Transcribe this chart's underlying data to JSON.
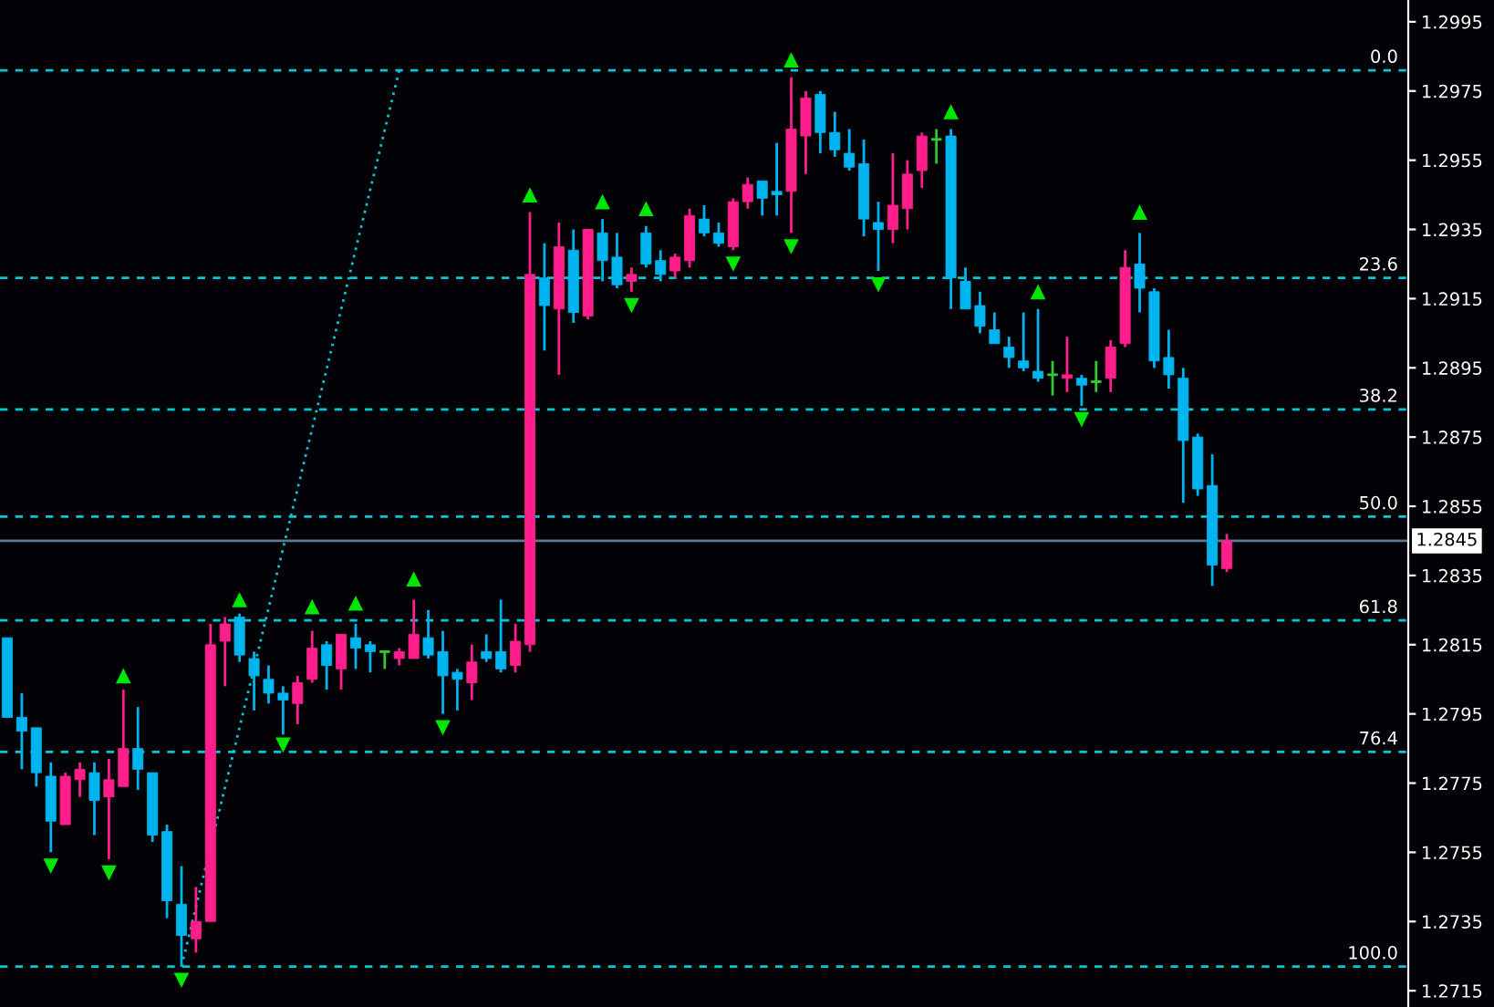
{
  "chart_data": {
    "type": "candlestick",
    "categories": [
      null,
      null,
      null,
      null,
      null,
      null,
      null,
      null,
      null,
      null,
      null,
      null,
      null,
      null,
      null,
      null,
      null,
      null,
      null,
      null,
      null,
      null,
      null,
      null,
      null,
      null,
      null,
      null,
      null,
      null,
      null,
      null,
      null,
      null,
      null,
      null,
      null,
      null,
      null,
      null,
      null,
      null,
      null,
      null,
      null,
      null,
      null,
      null,
      null,
      null,
      null,
      null,
      null,
      null,
      null,
      null,
      null,
      null,
      null,
      null,
      null,
      null,
      null,
      null,
      null,
      null,
      null,
      null,
      null,
      null,
      null,
      null,
      null,
      null,
      null,
      null,
      null,
      null,
      null,
      null,
      null,
      null,
      null,
      null,
      null,
      null,
      null,
      null,
      null,
      null,
      null,
      null,
      null,
      null,
      null,
      null,
      null
    ],
    "ohlc": [
      [
        1.2817,
        1.2817,
        1.2794,
        1.2794
      ],
      [
        1.2794,
        1.2801,
        1.2779,
        1.279
      ],
      [
        1.2791,
        1.2791,
        1.2774,
        1.2778
      ],
      [
        1.2777,
        1.2781,
        1.2755,
        1.2764
      ],
      [
        1.2763,
        1.2778,
        1.2763,
        1.2777
      ],
      [
        1.2776,
        1.2781,
        1.2771,
        1.2779
      ],
      [
        1.2778,
        1.2781,
        1.276,
        1.277
      ],
      [
        1.2771,
        1.2782,
        1.2753,
        1.2776
      ],
      [
        1.2774,
        1.2802,
        1.2774,
        1.2785
      ],
      [
        1.2785,
        1.2797,
        1.2773,
        1.2779
      ],
      [
        1.2778,
        1.2778,
        1.2758,
        1.276
      ],
      [
        1.2761,
        1.2763,
        1.2736,
        1.2741
      ],
      [
        1.274,
        1.2751,
        1.2722,
        1.2731
      ],
      [
        1.273,
        1.2745,
        1.2726,
        1.2735
      ],
      [
        1.2735,
        1.2821,
        1.2735,
        1.2815
      ],
      [
        1.2816,
        1.2823,
        1.2803,
        1.2821
      ],
      [
        1.2823,
        1.2824,
        1.281,
        1.2812
      ],
      [
        1.2811,
        1.2813,
        1.2796,
        1.2806
      ],
      [
        1.2805,
        1.2809,
        1.2798,
        1.2801
      ],
      [
        1.2801,
        1.2803,
        1.2789,
        1.2799
      ],
      [
        1.2798,
        1.2806,
        1.2792,
        1.2804
      ],
      [
        1.2805,
        1.2819,
        1.2804,
        1.2814
      ],
      [
        1.2815,
        1.2816,
        1.2802,
        1.2809
      ],
      [
        1.2808,
        1.2818,
        1.2802,
        1.2818
      ],
      [
        1.2817,
        1.2821,
        1.2808,
        1.2814
      ],
      [
        1.2815,
        1.2816,
        1.2807,
        1.2813
      ],
      [
        1.2813,
        1.2813,
        1.2808,
        1.2813
      ],
      [
        1.2811,
        1.2814,
        1.2809,
        1.2813
      ],
      [
        1.2811,
        1.2828,
        1.2811,
        1.2818
      ],
      [
        1.2817,
        1.2825,
        1.2811,
        1.2812
      ],
      [
        1.2813,
        1.2819,
        1.2795,
        1.2806
      ],
      [
        1.2807,
        1.2808,
        1.2796,
        1.2805
      ],
      [
        1.2804,
        1.2815,
        1.2799,
        1.281
      ],
      [
        1.2813,
        1.2818,
        1.281,
        1.2811
      ],
      [
        1.2813,
        1.2828,
        1.2807,
        1.2808
      ],
      [
        1.2809,
        1.2821,
        1.2807,
        1.2816
      ],
      [
        1.2815,
        1.294,
        1.2813,
        1.2922
      ],
      [
        1.2921,
        1.2931,
        1.29,
        1.2913
      ],
      [
        1.2912,
        1.2937,
        1.2893,
        1.293
      ],
      [
        1.2929,
        1.2935,
        1.2908,
        1.2911
      ],
      [
        1.291,
        1.2935,
        1.2909,
        1.2935
      ],
      [
        1.2934,
        1.2938,
        1.292,
        1.2926
      ],
      [
        1.2927,
        1.2934,
        1.2918,
        1.2919
      ],
      [
        1.292,
        1.2924,
        1.2917,
        1.2922
      ],
      [
        1.2934,
        1.2936,
        1.2924,
        1.2925
      ],
      [
        1.2926,
        1.2929,
        1.292,
        1.2922
      ],
      [
        1.2923,
        1.2928,
        1.2921,
        1.2927
      ],
      [
        1.2926,
        1.2941,
        1.2924,
        1.2939
      ],
      [
        1.2938,
        1.2942,
        1.2933,
        1.2934
      ],
      [
        1.2934,
        1.2937,
        1.293,
        1.2931
      ],
      [
        1.293,
        1.2944,
        1.2929,
        1.2943
      ],
      [
        1.2943,
        1.295,
        1.2941,
        1.2948
      ],
      [
        1.2949,
        1.2949,
        1.2939,
        1.2944
      ],
      [
        1.2946,
        1.296,
        1.2939,
        1.2945
      ],
      [
        1.2946,
        1.2979,
        1.2934,
        1.2964
      ],
      [
        1.2962,
        1.2975,
        1.2951,
        1.2973
      ],
      [
        1.2974,
        1.2975,
        1.2957,
        1.2963
      ],
      [
        1.2963,
        1.2969,
        1.2956,
        1.2958
      ],
      [
        1.2957,
        1.2964,
        1.2952,
        1.2953
      ],
      [
        1.2954,
        1.2961,
        1.2933,
        1.2938
      ],
      [
        1.2937,
        1.2943,
        1.2923,
        1.2935
      ],
      [
        1.2935,
        1.2957,
        1.2931,
        1.2942
      ],
      [
        1.2941,
        1.2955,
        1.2935,
        1.2951
      ],
      [
        1.2952,
        1.2963,
        1.2947,
        1.2962
      ],
      [
        1.2961,
        1.2964,
        1.2954,
        1.2961
      ],
      [
        1.2962,
        1.2964,
        1.2912,
        1.2921
      ],
      [
        1.292,
        1.2924,
        1.2912,
        1.2912
      ],
      [
        1.2913,
        1.2917,
        1.2905,
        1.2907
      ],
      [
        1.2906,
        1.2911,
        1.2902,
        1.2902
      ],
      [
        1.2901,
        1.2904,
        1.2895,
        1.2898
      ],
      [
        1.2897,
        1.2911,
        1.2894,
        1.2895
      ],
      [
        1.2894,
        1.2912,
        1.2891,
        1.2892
      ],
      [
        1.2893,
        1.2897,
        1.2887,
        1.2893
      ],
      [
        1.2892,
        1.2904,
        1.2888,
        1.2893
      ],
      [
        1.2892,
        1.2893,
        1.2884,
        1.289
      ],
      [
        1.2891,
        1.2897,
        1.2888,
        1.2891
      ],
      [
        1.2892,
        1.2903,
        1.2888,
        1.2901
      ],
      [
        1.2902,
        1.2929,
        1.2901,
        1.2924
      ],
      [
        1.2925,
        1.2934,
        1.2911,
        1.2918
      ],
      [
        1.2917,
        1.2918,
        1.2895,
        1.2897
      ],
      [
        1.2898,
        1.2906,
        1.2889,
        1.2893
      ],
      [
        1.2892,
        1.2895,
        1.2856,
        1.2874
      ],
      [
        1.2875,
        1.2876,
        1.2858,
        1.286
      ],
      [
        1.2861,
        1.287,
        1.2832,
        1.2838
      ],
      [
        1.2837,
        1.2847,
        1.2836,
        1.2845
      ],
      null,
      null,
      null,
      null,
      null,
      null,
      null,
      null,
      null,
      null,
      null,
      null
    ],
    "colors": [
      "#00b4f0",
      "#00b4f0",
      "#00b4f0",
      "#00b4f0",
      "#ff1e8c",
      "#ff1e8c",
      "#00b4f0",
      "#ff1e8c",
      "#ff1e8c",
      "#00b4f0",
      "#00b4f0",
      "#00b4f0",
      "#00b4f0",
      "#ff1e8c",
      "#ff1e8c",
      "#ff1e8c",
      "#00b4f0",
      "#00b4f0",
      "#00b4f0",
      "#00b4f0",
      "#ff1e8c",
      "#ff1e8c",
      "#00b4f0",
      "#ff1e8c",
      "#00b4f0",
      "#00b4f0",
      "#32c832",
      "#ff1e8c",
      "#ff1e8c",
      "#00b4f0",
      "#00b4f0",
      "#00b4f0",
      "#ff1e8c",
      "#00b4f0",
      "#00b4f0",
      "#ff1e8c",
      "#ff1e8c",
      "#00b4f0",
      "#ff1e8c",
      "#00b4f0",
      "#ff1e8c",
      "#00b4f0",
      "#00b4f0",
      "#ff1e8c",
      "#00b4f0",
      "#00b4f0",
      "#ff1e8c",
      "#ff1e8c",
      "#00b4f0",
      "#00b4f0",
      "#ff1e8c",
      "#ff1e8c",
      "#00b4f0",
      "#00b4f0",
      "#ff1e8c",
      "#ff1e8c",
      "#00b4f0",
      "#00b4f0",
      "#00b4f0",
      "#00b4f0",
      "#00b4f0",
      "#ff1e8c",
      "#ff1e8c",
      "#ff1e8c",
      "#32c832",
      "#00b4f0",
      "#00b4f0",
      "#00b4f0",
      "#00b4f0",
      "#00b4f0",
      "#00b4f0",
      "#00b4f0",
      "#32c832",
      "#ff1e8c",
      "#00b4f0",
      "#32c832",
      "#ff1e8c",
      "#ff1e8c",
      "#00b4f0",
      "#00b4f0",
      "#00b4f0",
      "#00b4f0",
      "#00b4f0",
      "#00b4f0",
      "#ff1e8c",
      null,
      null,
      null,
      null,
      null,
      null,
      null,
      null,
      null,
      null,
      null,
      null
    ],
    "series": [
      {
        "type": "scatter",
        "marker": "triangle",
        "color": "#00e600",
        "values": [
          null,
          null,
          null,
          null,
          null,
          null,
          null,
          null,
          1.2806,
          null,
          null,
          null,
          null,
          null,
          null,
          null,
          1.2828,
          null,
          null,
          null,
          null,
          1.2826,
          null,
          null,
          1.2827,
          null,
          null,
          null,
          1.2834,
          null,
          null,
          null,
          null,
          null,
          null,
          null,
          1.2945,
          null,
          null,
          null,
          null,
          1.2943,
          null,
          null,
          1.2941,
          null,
          null,
          null,
          null,
          null,
          null,
          null,
          null,
          null,
          1.2984,
          null,
          null,
          null,
          null,
          null,
          null,
          null,
          null,
          null,
          null,
          1.2969,
          null,
          null,
          null,
          null,
          null,
          1.2917,
          null,
          null,
          null,
          null,
          null,
          null,
          1.294,
          null,
          null,
          null,
          null,
          null,
          null,
          null,
          null,
          null,
          null,
          null,
          null,
          null,
          null,
          null,
          null,
          null,
          null
        ]
      },
      {
        "type": "scatter",
        "marker": "triangle_down",
        "color": "#00e600",
        "values": [
          null,
          null,
          null,
          1.2751,
          null,
          null,
          null,
          1.2749,
          null,
          null,
          null,
          null,
          1.2718,
          null,
          null,
          null,
          null,
          null,
          null,
          1.2786,
          null,
          null,
          null,
          null,
          null,
          null,
          null,
          null,
          null,
          null,
          1.2791,
          null,
          null,
          null,
          null,
          null,
          null,
          null,
          null,
          null,
          null,
          null,
          null,
          1.2913,
          null,
          null,
          null,
          null,
          null,
          null,
          1.2925,
          null,
          null,
          null,
          1.293,
          null,
          null,
          null,
          null,
          null,
          1.2919,
          null,
          null,
          null,
          null,
          null,
          null,
          null,
          null,
          null,
          null,
          null,
          null,
          null,
          1.288,
          null,
          null,
          null,
          null,
          null,
          null,
          null,
          null,
          null,
          null,
          null,
          null,
          null,
          null,
          null,
          null,
          null,
          null,
          null,
          null,
          null,
          null
        ]
      },
      {
        "type": "line",
        "line_style": "dotted",
        "color": "#00c8d8",
        "values": [
          null,
          null,
          null,
          null,
          null,
          null,
          null,
          null,
          null,
          null,
          null,
          null,
          1.2722,
          null,
          null,
          null,
          null,
          null,
          null,
          null,
          null,
          null,
          null,
          null,
          null,
          null,
          null,
          1.2981,
          null,
          null,
          null,
          null,
          null,
          null,
          null,
          null,
          null,
          null,
          null,
          null,
          null,
          null,
          null,
          null,
          null,
          null,
          null,
          null,
          null,
          null,
          null,
          null,
          null,
          null,
          null,
          null,
          null,
          null,
          null,
          null,
          null,
          null,
          null,
          null,
          null,
          null,
          null,
          null,
          null,
          null,
          null,
          null,
          null,
          null,
          null,
          null,
          null,
          null,
          null,
          null,
          null,
          null,
          null,
          null,
          null,
          null,
          null,
          null,
          null,
          null,
          null,
          null,
          null,
          null,
          null,
          null,
          null
        ]
      }
    ],
    "annotations": [
      {
        "text": "0.0",
        "y": 1.2981
      },
      {
        "text": "23.6",
        "y": 1.2921
      },
      {
        "text": "38.2",
        "y": 1.2883
      },
      {
        "text": "50.0",
        "y": 1.2852
      },
      {
        "text": "61.8",
        "y": 1.2822
      },
      {
        "text": "76.4",
        "y": 1.2784
      },
      {
        "text": "100.0",
        "y": 1.2722
      }
    ],
    "ylim": [
      1.27103,
      1.30013
    ],
    "yticks": [
      1.2715,
      1.2735,
      1.2755,
      1.2775,
      1.2795,
      1.2815,
      1.2835,
      1.2855,
      1.2875,
      1.2895,
      1.2915,
      1.2935,
      1.2955,
      1.2975,
      1.2995
    ],
    "ref_lines": [
      {
        "axis": "y",
        "value": 1.2981,
        "color": "#00c8d8",
        "line_style": "dashed"
      },
      {
        "axis": "y",
        "value": 1.2921,
        "color": "#00c8d8",
        "line_style": "dashed"
      },
      {
        "axis": "y",
        "value": 1.2883,
        "color": "#00c8d8",
        "line_style": "dashed"
      },
      {
        "axis": "y",
        "value": 1.2852,
        "color": "#00c8d8",
        "line_style": "dashed"
      },
      {
        "axis": "y",
        "value": 1.2822,
        "color": "#00c8d8",
        "line_style": "dashed"
      },
      {
        "axis": "y",
        "value": 1.2784,
        "color": "#00c8d8",
        "line_style": "dashed"
      },
      {
        "axis": "y",
        "value": 1.2722,
        "color": "#00c8d8",
        "line_style": "dashed"
      },
      {
        "axis": "y",
        "value": 1.2845,
        "label": "1.2845",
        "color": "#5a7891",
        "line_style": "solid"
      }
    ],
    "tick_labels": "y",
    "grid": false,
    "legend": false
  }
}
